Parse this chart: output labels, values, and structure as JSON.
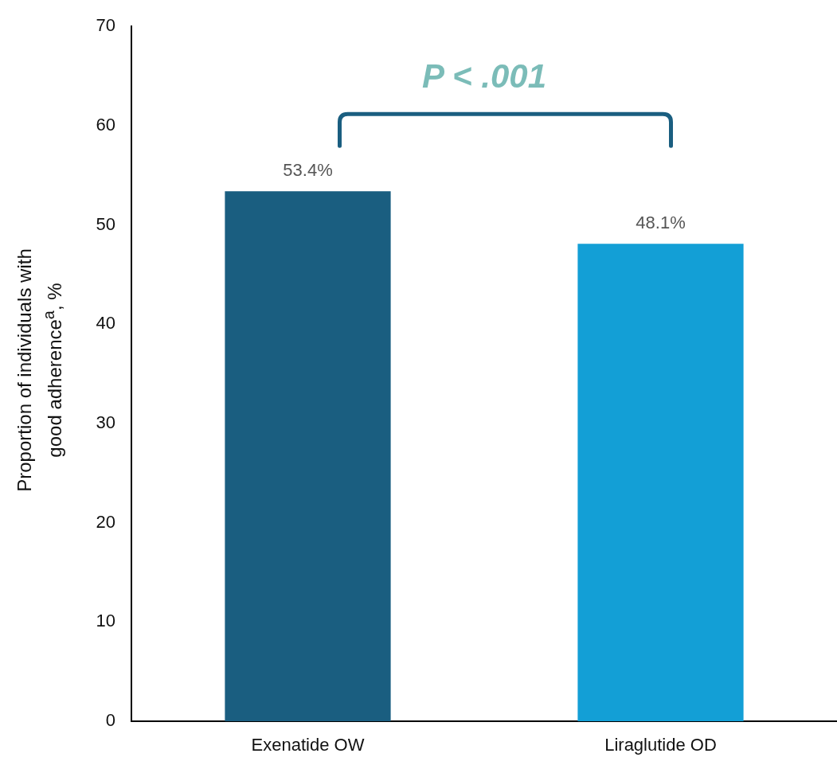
{
  "chart_data": {
    "type": "bar",
    "ylabel": "Proportion of individuals with good adherence$^{a}$, %",
    "categories": [
      "Exenatide OW",
      "Liraglutide OD"
    ],
    "values": [
      53.4,
      48.1
    ],
    "colors": [
      "#1a5e80",
      "#139fd6"
    ],
    "value_labels": [
      "53.4%",
      "48.1%"
    ],
    "ylim": [
      0,
      70
    ],
    "yticks": [
      0,
      10,
      20,
      30,
      40,
      50,
      60,
      70
    ],
    "grid": false,
    "legend": false,
    "annotations": [
      "P < .001"
    ]
  }
}
